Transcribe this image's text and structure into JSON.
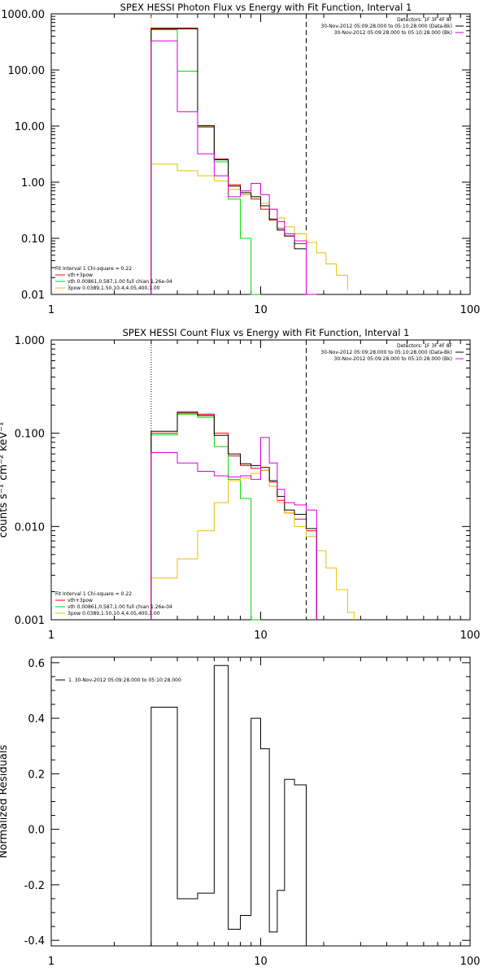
{
  "colors": {
    "total": "#ff0000",
    "thermal": "#00dd00",
    "power_law": "#e8c000",
    "data": "#000000",
    "background": "#dd00dd"
  },
  "chart_data": [
    {
      "type": "line",
      "title": "SPEX HESSI Photon Flux vs Energy with Fit Function, Interval 1",
      "xlabel": "",
      "ylabel": "",
      "xscale": "log",
      "yscale": "log",
      "xlim": [
        1,
        100
      ],
      "ylim": [
        0.01,
        1000
      ],
      "x_ticks": [
        "1",
        "10",
        "100"
      ],
      "y_ticks": [
        "0.01",
        "0.10",
        "1.00",
        "10.00",
        "100.00",
        "1000.00"
      ],
      "vlines": [
        {
          "x": 3.0,
          "style": "dotted",
          "color": "#e8c000"
        },
        {
          "x": 16.5,
          "style": "dashed",
          "color": "#000000"
        }
      ],
      "legend_top_right": [
        {
          "text": "Detectors: 1F 3F 4F 8F"
        },
        {
          "text": "30-Nov-2012 05:09:28.000 to 05:10:28.000 (Data-Bk)",
          "color": "#000000"
        },
        {
          "text": "30-Nov-2012 05:09:28.000 to 05:10:28.000 (Bk)",
          "color": "#dd00dd"
        }
      ],
      "legend_bottom_left": [
        {
          "text": "Fit Interval 1   Chi-square = 0.22"
        },
        {
          "text": "vth+3pow",
          "color": "#ff0000"
        },
        {
          "text": "vth 0.00861,0.587,1.00  full chian 1.26e-04",
          "color": "#00dd00"
        },
        {
          "text": "3pow 0.0389,1.50,10.4,4.05,400,1.00",
          "color": "#e8c000"
        }
      ],
      "edges": [
        3.0,
        4.0,
        5.0,
        6.0,
        7.0,
        8.0,
        9.0,
        10.0,
        11.0,
        12.0,
        13.0,
        14.5,
        16.5,
        18.5,
        20.5,
        23.0,
        26.0
      ],
      "series": [
        {
          "name": "vth+3pow",
          "color": "#ff0000",
          "values": [
            560,
            560,
            10.2,
            2.6,
            0.9,
            0.6,
            0.5,
            0.33,
            0.21,
            0.15,
            0.11,
            0.08
          ]
        },
        {
          "name": "vth",
          "color": "#00dd00",
          "values": [
            520,
            95,
            9.5,
            2.3,
            0.5,
            0.1,
            0.01
          ]
        },
        {
          "name": "3pow",
          "color": "#e8c000",
          "values": [
            2.1,
            1.6,
            1.3,
            1.05,
            0.75,
            0.6,
            0.55,
            0.42,
            0.33,
            0.23,
            0.16,
            0.12,
            0.085,
            0.055,
            0.035,
            0.022,
            0.012
          ]
        },
        {
          "color": "#000000",
          "values": [
            540,
            540,
            10.0,
            2.5,
            0.85,
            0.65,
            0.55,
            0.38,
            0.22,
            0.14,
            0.11,
            0.065
          ]
        },
        {
          "color": "#dd00dd",
          "values": [
            330,
            18,
            3.2,
            1.3,
            0.55,
            0.7,
            0.95,
            0.6,
            0.33,
            0.2,
            0.12,
            0.09,
            0.01
          ]
        }
      ]
    },
    {
      "type": "line",
      "title": "SPEX HESSI Count Flux vs Energy with Fit Function, Interval 1",
      "xlabel": "",
      "ylabel": "counts s⁻¹ cm⁻² keV⁻¹",
      "xscale": "log",
      "yscale": "log",
      "xlim": [
        1,
        100
      ],
      "ylim": [
        0.001,
        1.0
      ],
      "x_ticks": [
        "1",
        "10",
        "100"
      ],
      "y_ticks": [
        "0.001",
        "0.010",
        "0.100",
        "1.000"
      ],
      "vlines": [
        {
          "x": 3.0,
          "style": "dotted",
          "color": "#000000"
        },
        {
          "x": 16.5,
          "style": "dashed",
          "color": "#000000"
        }
      ],
      "legend_top_right": [
        {
          "text": "Detectors: 1F 3F 4F 8F"
        },
        {
          "text": "30-Nov-2012 05:09:28.000 to 05:10:28.000 (Data-Bk)",
          "color": "#000000"
        },
        {
          "text": "30-Nov-2012 05:09:28.000 to 05:10:28.000 (Bk)",
          "color": "#dd00dd"
        }
      ],
      "legend_bottom_left": [
        {
          "text": "Fit Interval 1   Chi-square = 0.22"
        },
        {
          "text": "vth+3pow",
          "color": "#ff0000"
        },
        {
          "text": "vth 0.00861,0.587,1.00  full chian 1.26e-04",
          "color": "#00dd00"
        },
        {
          "text": "3pow 0.0389,1.50,10.4,4.05,400,1.00",
          "color": "#e8c000"
        }
      ],
      "edges": [
        3.0,
        4.0,
        5.0,
        6.0,
        7.0,
        8.0,
        9.0,
        10.0,
        11.0,
        12.0,
        13.0,
        14.5,
        16.5,
        18.5,
        20.5,
        23.0,
        26.0,
        28.0
      ],
      "series": [
        {
          "name": "vth+3pow",
          "color": "#ff0000",
          "values": [
            0.1,
            0.17,
            0.16,
            0.1,
            0.057,
            0.045,
            0.042,
            0.04,
            0.03,
            0.019,
            0.014,
            0.012,
            0.009
          ]
        },
        {
          "name": "vth",
          "color": "#00dd00",
          "values": [
            0.096,
            0.16,
            0.148,
            0.072,
            0.032,
            0.02,
            0.001
          ]
        },
        {
          "name": "3pow",
          "color": "#e8c000",
          "values": [
            0.0028,
            0.0045,
            0.009,
            0.018,
            0.031,
            0.033,
            0.037,
            0.04,
            0.027,
            0.018,
            0.014,
            0.01,
            0.0078,
            0.0055,
            0.0036,
            0.0021,
            0.0012,
            0.001
          ]
        },
        {
          "color": "#000000",
          "values": [
            0.105,
            0.165,
            0.155,
            0.095,
            0.06,
            0.047,
            0.045,
            0.043,
            0.031,
            0.021,
            0.015,
            0.0135,
            0.0095
          ]
        },
        {
          "color": "#dd00dd",
          "values": [
            0.062,
            0.048,
            0.039,
            0.035,
            0.034,
            0.035,
            0.032,
            0.09,
            0.048,
            0.025,
            0.018,
            0.017,
            0.015
          ]
        }
      ]
    },
    {
      "type": "line",
      "title": "",
      "xlabel": "",
      "ylabel": "Normalized Residuals",
      "xscale": "log",
      "yscale": "linear",
      "xlim": [
        1,
        100
      ],
      "ylim": [
        -0.42,
        0.62
      ],
      "x_ticks": [
        "1",
        "10",
        "100"
      ],
      "y_ticks": [
        "-0.4",
        "-0.2",
        "0.0",
        "0.2",
        "0.4",
        "0.6"
      ],
      "legend_top_left": [
        {
          "text": "1. 30-Nov-2012 05:09:28.000 to 05:10:28.000",
          "color": "#000000"
        }
      ],
      "edges": [
        3.0,
        4.0,
        5.0,
        6.0,
        7.0,
        8.0,
        9.0,
        10.0,
        11.0,
        12.0,
        13.0,
        14.5,
        16.5
      ],
      "series": [
        {
          "color": "#000000",
          "values": [
            0.44,
            -0.25,
            -0.23,
            0.59,
            -0.36,
            -0.31,
            0.4,
            0.29,
            -0.37,
            -0.22,
            0.18,
            0.16
          ]
        }
      ]
    }
  ]
}
